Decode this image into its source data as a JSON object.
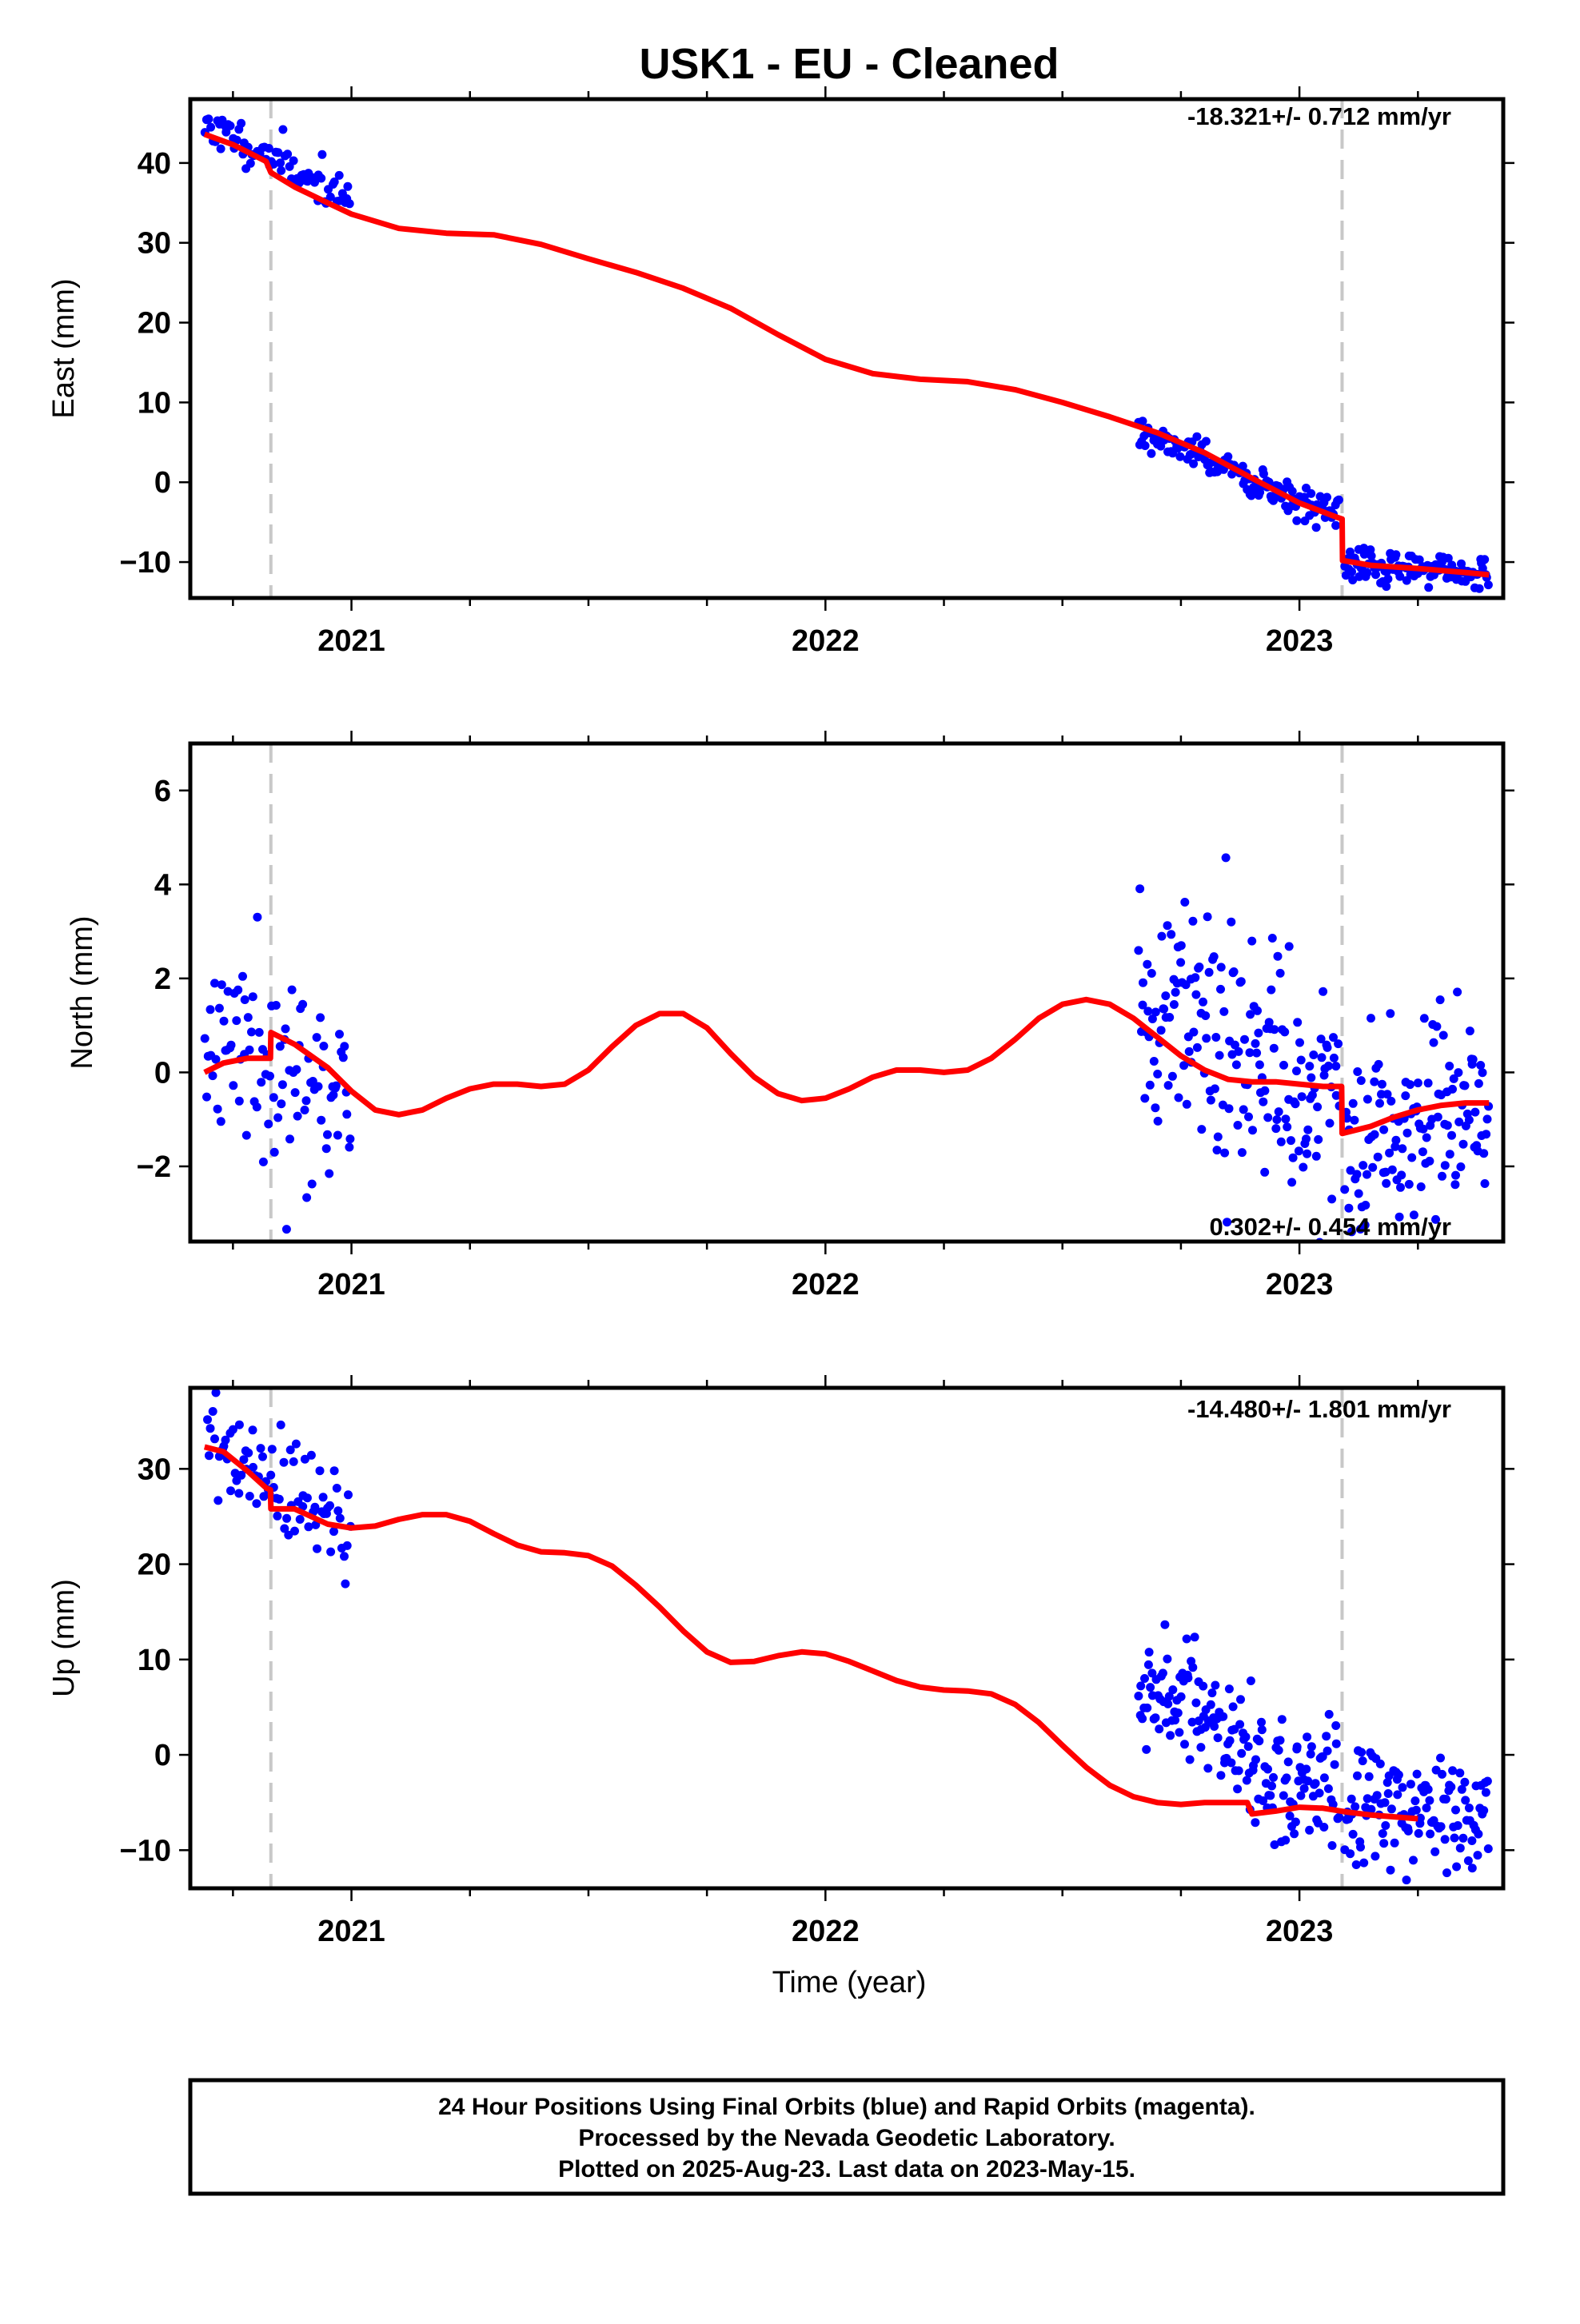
{
  "title": "USK1  - EU - Cleaned",
  "x_axis_label": "Time (year)",
  "caption": [
    "24 Hour Positions Using Final Orbits (blue) and Rapid Orbits (magenta).",
    "Processed by the Nevada Geodetic Laboratory.",
    "Plotted on 2025-Aug-23. Last data on 2023-May-15."
  ],
  "colors": {
    "data": "#0000ff",
    "fit": "#ff0000",
    "offset_line": "#c8c8c8"
  },
  "chart_data": [
    {
      "type": "scatter",
      "component": "east",
      "ylabel": "East (mm)",
      "rate_text": "-18.321+/- 0.712 mm/yr",
      "xlim": [
        2020.66,
        2023.43
      ],
      "ylim": [
        -14.5,
        48
      ],
      "yticks": [
        -10,
        0,
        10,
        20,
        30,
        40
      ],
      "xticks": [
        2021,
        2022,
        2023
      ],
      "offsets": [
        2020.83,
        2023.09
      ],
      "fit": [
        [
          2020.69,
          43.6
        ],
        [
          2020.75,
          42.3
        ],
        [
          2020.82,
          40.2
        ],
        [
          2020.83,
          38.8
        ],
        [
          2020.88,
          37.0
        ],
        [
          2020.95,
          35.0
        ],
        [
          2021.0,
          33.6
        ],
        [
          2021.1,
          31.8
        ],
        [
          2021.2,
          31.2
        ],
        [
          2021.3,
          31.0
        ],
        [
          2021.4,
          29.8
        ],
        [
          2021.5,
          28.0
        ],
        [
          2021.6,
          26.3
        ],
        [
          2021.7,
          24.3
        ],
        [
          2021.8,
          21.8
        ],
        [
          2021.9,
          18.5
        ],
        [
          2022.0,
          15.4
        ],
        [
          2022.1,
          13.6
        ],
        [
          2022.2,
          12.9
        ],
        [
          2022.3,
          12.6
        ],
        [
          2022.4,
          11.6
        ],
        [
          2022.5,
          10.0
        ],
        [
          2022.6,
          8.2
        ],
        [
          2022.7,
          6.2
        ],
        [
          2022.8,
          3.7
        ],
        [
          2022.9,
          0.5
        ],
        [
          2023.0,
          -2.6
        ],
        [
          2023.08,
          -4.4
        ],
        [
          2023.09,
          -4.6
        ],
        [
          2023.091,
          -9.8
        ],
        [
          2023.15,
          -10.4
        ],
        [
          2023.25,
          -10.8
        ],
        [
          2023.35,
          -11.3
        ],
        [
          2023.4,
          -11.6
        ]
      ],
      "segments": [
        {
          "start": 2020.69,
          "end": 2021.0,
          "y0": 45.0,
          "y1": 35.5,
          "wave": 0.0,
          "noise": 1.2,
          "count": 75,
          "seed": 11
        },
        {
          "start": 2022.66,
          "end": 2023.085,
          "y0": 6.0,
          "y1": -4.2,
          "wave": 0.6,
          "noise": 1.1,
          "count": 150,
          "seed": 12
        },
        {
          "start": 2023.095,
          "end": 2023.4,
          "y0": -10.3,
          "y1": -11.6,
          "wave": 0.0,
          "noise": 1.0,
          "count": 110,
          "seed": 13
        }
      ]
    },
    {
      "type": "scatter",
      "component": "north",
      "ylabel": "North (mm)",
      "rate_text": "0.302+/- 0.454 mm/yr",
      "xlim": [
        2020.66,
        2023.43
      ],
      "ylim": [
        -3.6,
        7.0
      ],
      "yticks": [
        -2,
        0,
        2,
        4,
        6
      ],
      "xticks": [
        2021,
        2022,
        2023
      ],
      "offsets": [
        2020.83,
        2023.09
      ],
      "fit": [
        [
          2020.69,
          0.0
        ],
        [
          2020.73,
          0.2
        ],
        [
          2020.78,
          0.3
        ],
        [
          2020.82,
          0.3
        ],
        [
          2020.829,
          0.3
        ],
        [
          2020.83,
          0.85
        ],
        [
          2020.88,
          0.6
        ],
        [
          2020.95,
          0.1
        ],
        [
          2021.0,
          -0.4
        ],
        [
          2021.05,
          -0.8
        ],
        [
          2021.1,
          -0.9
        ],
        [
          2021.15,
          -0.8
        ],
        [
          2021.2,
          -0.55
        ],
        [
          2021.25,
          -0.35
        ],
        [
          2021.3,
          -0.25
        ],
        [
          2021.35,
          -0.25
        ],
        [
          2021.4,
          -0.3
        ],
        [
          2021.45,
          -0.25
        ],
        [
          2021.5,
          0.05
        ],
        [
          2021.55,
          0.55
        ],
        [
          2021.6,
          1.0
        ],
        [
          2021.65,
          1.25
        ],
        [
          2021.7,
          1.25
        ],
        [
          2021.75,
          0.95
        ],
        [
          2021.8,
          0.4
        ],
        [
          2021.85,
          -0.1
        ],
        [
          2021.9,
          -0.45
        ],
        [
          2021.95,
          -0.6
        ],
        [
          2022.0,
          -0.55
        ],
        [
          2022.05,
          -0.35
        ],
        [
          2022.1,
          -0.1
        ],
        [
          2022.15,
          0.05
        ],
        [
          2022.2,
          0.05
        ],
        [
          2022.25,
          0.0
        ],
        [
          2022.3,
          0.05
        ],
        [
          2022.35,
          0.3
        ],
        [
          2022.4,
          0.7
        ],
        [
          2022.45,
          1.15
        ],
        [
          2022.5,
          1.45
        ],
        [
          2022.55,
          1.55
        ],
        [
          2022.6,
          1.45
        ],
        [
          2022.65,
          1.15
        ],
        [
          2022.7,
          0.75
        ],
        [
          2022.75,
          0.35
        ],
        [
          2022.8,
          0.05
        ],
        [
          2022.85,
          -0.15
        ],
        [
          2022.9,
          -0.2
        ],
        [
          2022.95,
          -0.2
        ],
        [
          2023.0,
          -0.25
        ],
        [
          2023.05,
          -0.3
        ],
        [
          2023.089,
          -0.3
        ],
        [
          2023.09,
          -1.3
        ],
        [
          2023.15,
          -1.15
        ],
        [
          2023.2,
          -0.95
        ],
        [
          2023.25,
          -0.8
        ],
        [
          2023.3,
          -0.7
        ],
        [
          2023.35,
          -0.65
        ],
        [
          2023.4,
          -0.65
        ]
      ],
      "segments": [
        {
          "start": 2020.69,
          "end": 2021.0,
          "y0": 0.1,
          "y1": 0.1,
          "wave": 0.3,
          "noise": 1.05,
          "count": 95,
          "seed": 21
        },
        {
          "start": 2022.66,
          "end": 2023.085,
          "y0": 1.1,
          "y1": -0.3,
          "wave": 0.5,
          "noise": 1.25,
          "count": 175,
          "seed": 22
        },
        {
          "start": 2023.095,
          "end": 2023.4,
          "y0": -1.2,
          "y1": -0.7,
          "wave": 0.0,
          "noise": 1.0,
          "count": 125,
          "seed": 23
        }
      ]
    },
    {
      "type": "scatter",
      "component": "up",
      "ylabel": "Up (mm)",
      "rate_text": "-14.480+/- 1.801 mm/yr",
      "xlim": [
        2020.66,
        2023.43
      ],
      "ylim": [
        -14,
        38.5
      ],
      "yticks": [
        -10,
        0,
        10,
        20,
        30
      ],
      "xticks": [
        2021,
        2022,
        2023
      ],
      "offsets": [
        2020.83,
        2023.09
      ],
      "fit": [
        [
          2020.69,
          32.3
        ],
        [
          2020.73,
          31.8
        ],
        [
          2020.78,
          29.8
        ],
        [
          2020.82,
          28.0
        ],
        [
          2020.829,
          27.8
        ],
        [
          2020.83,
          25.8
        ],
        [
          2020.88,
          25.8
        ],
        [
          2020.95,
          24.2
        ],
        [
          2021.0,
          23.8
        ],
        [
          2021.05,
          24.0
        ],
        [
          2021.1,
          24.7
        ],
        [
          2021.15,
          25.2
        ],
        [
          2021.2,
          25.2
        ],
        [
          2021.25,
          24.5
        ],
        [
          2021.3,
          23.2
        ],
        [
          2021.35,
          22.0
        ],
        [
          2021.4,
          21.3
        ],
        [
          2021.45,
          21.2
        ],
        [
          2021.5,
          20.9
        ],
        [
          2021.55,
          19.8
        ],
        [
          2021.6,
          17.8
        ],
        [
          2021.65,
          15.5
        ],
        [
          2021.7,
          13.0
        ],
        [
          2021.75,
          10.8
        ],
        [
          2021.8,
          9.7
        ],
        [
          2021.85,
          9.8
        ],
        [
          2021.9,
          10.4
        ],
        [
          2021.95,
          10.8
        ],
        [
          2022.0,
          10.6
        ],
        [
          2022.05,
          9.8
        ],
        [
          2022.1,
          8.8
        ],
        [
          2022.15,
          7.8
        ],
        [
          2022.2,
          7.1
        ],
        [
          2022.25,
          6.8
        ],
        [
          2022.3,
          6.7
        ],
        [
          2022.35,
          6.4
        ],
        [
          2022.4,
          5.3
        ],
        [
          2022.45,
          3.4
        ],
        [
          2022.5,
          1.0
        ],
        [
          2022.55,
          -1.3
        ],
        [
          2022.6,
          -3.2
        ],
        [
          2022.65,
          -4.4
        ],
        [
          2022.7,
          -5.0
        ],
        [
          2022.75,
          -5.2
        ],
        [
          2022.8,
          -5.0
        ],
        [
          2022.85,
          -5.0
        ],
        [
          2022.89,
          -5.0
        ],
        [
          2022.9,
          -6.2
        ],
        [
          2022.95,
          -5.9
        ],
        [
          2023.0,
          -5.5
        ],
        [
          2023.05,
          -5.6
        ],
        [
          2023.1,
          -6.0
        ],
        [
          2023.15,
          -6.3
        ],
        [
          2023.2,
          -6.5
        ],
        [
          2023.25,
          -6.7
        ]
      ],
      "segments": [
        {
          "start": 2020.69,
          "end": 2021.0,
          "y0": 33.0,
          "y1": 24.0,
          "wave": 0.0,
          "noise": 3.0,
          "count": 85,
          "seed": 31
        },
        {
          "start": 2022.66,
          "end": 2023.085,
          "y0": 7.0,
          "y1": -5.0,
          "wave": 1.5,
          "noise": 3.6,
          "count": 170,
          "seed": 32
        },
        {
          "start": 2023.095,
          "end": 2023.4,
          "y0": -5.5,
          "y1": -6.5,
          "wave": 0.0,
          "noise": 3.2,
          "count": 120,
          "seed": 33
        }
      ]
    }
  ]
}
